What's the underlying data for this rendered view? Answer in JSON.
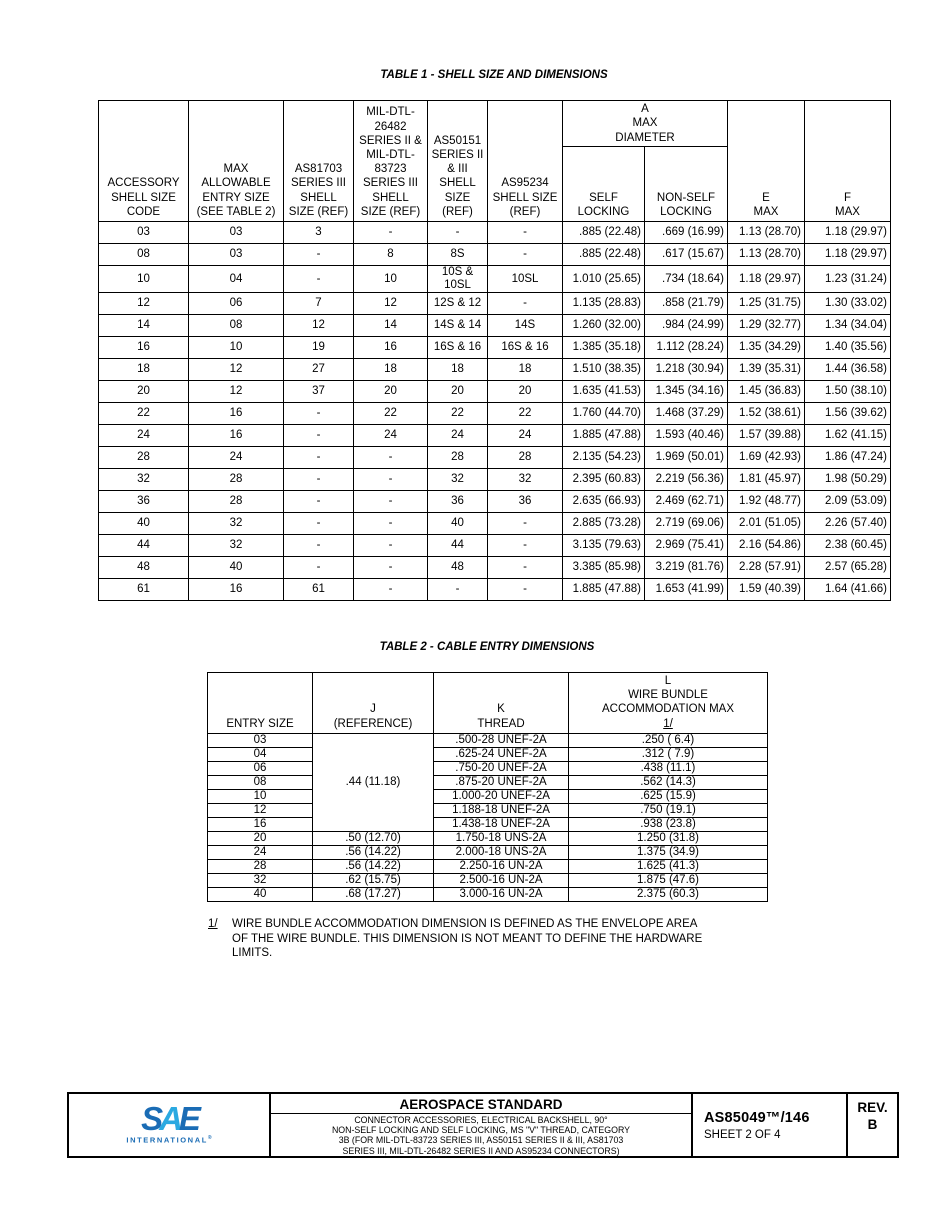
{
  "table1": {
    "title": "TABLE 1 - SHELL SIZE AND DIMENSIONS",
    "headers": {
      "accessory": "ACCESSORY\nSHELL SIZE\nCODE",
      "max_allowable": "MAX\nALLOWABLE\nENTRY SIZE\n(SEE TABLE 2)",
      "as81703": "AS81703\nSERIES III\nSHELL\nSIZE (REF)",
      "mil_dtl": "MIL-DTL-\n26482\nSERIES II &\nMIL-DTL-\n83723\nSERIES III\nSHELL\nSIZE (REF)",
      "as50151": "AS50151\nSERIES II\n& III\nSHELL\nSIZE\n(REF)",
      "as95234": "AS95234\nSHELL SIZE\n(REF)",
      "a_max": "A\nMAX\nDIAMETER",
      "self_locking": "SELF\nLOCKING",
      "non_self_locking": "NON-SELF\nLOCKING",
      "e_max": "E\nMAX",
      "f_max": "F\nMAX"
    },
    "rows": [
      [
        "03",
        "03",
        "3",
        "-",
        "-",
        "-",
        ".885 (22.48)",
        ".669 (16.99)",
        "1.13 (28.70)",
        "1.18 (29.97)"
      ],
      [
        "08",
        "03",
        "-",
        "8",
        "8S",
        "-",
        ".885 (22.48)",
        ".617 (15.67)",
        "1.13 (28.70)",
        "1.18 (29.97)"
      ],
      [
        "10",
        "04",
        "-",
        "10",
        "10S &\n10SL",
        "10SL",
        "1.010 (25.65)",
        ".734 (18.64)",
        "1.18 (29.97)",
        "1.23 (31.24)"
      ],
      [
        "12",
        "06",
        "7",
        "12",
        "12S & 12",
        "-",
        "1.135 (28.83)",
        ".858 (21.79)",
        "1.25 (31.75)",
        "1.30 (33.02)"
      ],
      [
        "14",
        "08",
        "12",
        "14",
        "14S & 14",
        "14S",
        "1.260 (32.00)",
        ".984 (24.99)",
        "1.29 (32.77)",
        "1.34 (34.04)"
      ],
      [
        "16",
        "10",
        "19",
        "16",
        "16S & 16",
        "16S & 16",
        "1.385 (35.18)",
        "1.112 (28.24)",
        "1.35 (34.29)",
        "1.40 (35.56)"
      ],
      [
        "18",
        "12",
        "27",
        "18",
        "18",
        "18",
        "1.510 (38.35)",
        "1.218 (30.94)",
        "1.39 (35.31)",
        "1.44 (36.58)"
      ],
      [
        "20",
        "12",
        "37",
        "20",
        "20",
        "20",
        "1.635 (41.53)",
        "1.345 (34.16)",
        "1.45 (36.83)",
        "1.50 (38.10)"
      ],
      [
        "22",
        "16",
        "-",
        "22",
        "22",
        "22",
        "1.760 (44.70)",
        "1.468 (37.29)",
        "1.52 (38.61)",
        "1.56 (39.62)"
      ],
      [
        "24",
        "16",
        "-",
        "24",
        "24",
        "24",
        "1.885 (47.88)",
        "1.593 (40.46)",
        "1.57 (39.88)",
        "1.62 (41.15)"
      ],
      [
        "28",
        "24",
        "-",
        "-",
        "28",
        "28",
        "2.135 (54.23)",
        "1.969 (50.01)",
        "1.69 (42.93)",
        "1.86 (47.24)"
      ],
      [
        "32",
        "28",
        "-",
        "-",
        "32",
        "32",
        "2.395 (60.83)",
        "2.219 (56.36)",
        "1.81 (45.97)",
        "1.98 (50.29)"
      ],
      [
        "36",
        "28",
        "-",
        "-",
        "36",
        "36",
        "2.635 (66.93)",
        "2.469 (62.71)",
        "1.92 (48.77)",
        "2.09 (53.09)"
      ],
      [
        "40",
        "32",
        "-",
        "-",
        "40",
        "-",
        "2.885 (73.28)",
        "2.719 (69.06)",
        "2.01 (51.05)",
        "2.26 (57.40)"
      ],
      [
        "44",
        "32",
        "-",
        "-",
        "44",
        "-",
        "3.135 (79.63)",
        "2.969 (75.41)",
        "2.16 (54.86)",
        "2.38 (60.45)"
      ],
      [
        "48",
        "40",
        "-",
        "-",
        "48",
        "-",
        "3.385 (85.98)",
        "3.219 (81.76)",
        "2.28 (57.91)",
        "2.57 (65.28)"
      ],
      [
        "61",
        "16",
        "61",
        "-",
        "-",
        "-",
        "1.885 (47.88)",
        "1.653 (41.99)",
        "1.59 (40.39)",
        "1.64 (41.66)"
      ]
    ]
  },
  "table2": {
    "title": "TABLE 2 - CABLE ENTRY DIMENSIONS",
    "headers": {
      "entry_size": "ENTRY SIZE",
      "j_ref": "J\n(REFERENCE)",
      "k_thread": "K\nTHREAD",
      "l_max": "L\nWIRE BUNDLE\nACCOMMODATION MAX",
      "l_marker": "1/"
    },
    "rows": [
      [
        "03",
        {
          "t": ".44 (11.18)",
          "rs": 7
        },
        ".500-28 UNEF-2A",
        ".250 ( 6.4)"
      ],
      [
        "04",
        ".625-24 UNEF-2A",
        ".312 ( 7.9)"
      ],
      [
        "06",
        ".750-20 UNEF-2A",
        ".438 (11.1)"
      ],
      [
        "08",
        ".875-20 UNEF-2A",
        ".562 (14.3)"
      ],
      [
        "10",
        "1.000-20 UNEF-2A",
        ".625 (15.9)"
      ],
      [
        "12",
        "1.188-18 UNEF-2A",
        ".750 (19.1)"
      ],
      [
        "16",
        "1.438-18 UNEF-2A",
        ".938 (23.8)"
      ],
      [
        "20",
        ".50 (12.70)",
        "1.750-18 UNS-2A",
        "1.250 (31.8)"
      ],
      [
        "24",
        ".56 (14.22)",
        "2.000-18 UNS-2A",
        "1.375 (34.9)"
      ],
      [
        "28",
        ".56 (14.22)",
        "2.250-16 UN-2A",
        "1.625 (41.3)"
      ],
      [
        "32",
        ".62 (15.75)",
        "2.500-16 UN-2A",
        "1.875 (47.6)"
      ],
      [
        "40",
        ".68 (17.27)",
        "3.000-16 UN-2A",
        "2.375 (60.3)"
      ]
    ]
  },
  "footnote": {
    "marker": "1/",
    "text": "WIRE BUNDLE ACCOMMODATION DIMENSION IS DEFINED AS THE ENVELOPE AREA\nOF THE WIRE BUNDLE. THIS DIMENSION IS NOT MEANT TO DEFINE THE HARDWARE\nLIMITS."
  },
  "footer": {
    "logo": {
      "s": "S",
      "a": "A",
      "e": "E",
      "intl": "INTERNATIONAL",
      "reg": "®",
      "dark_blue": "#1a6cb5",
      "light_blue": "#2aa9e1"
    },
    "title": "AEROSPACE STANDARD",
    "subtitle": "CONNECTOR ACCESSORIES, ELECTRICAL BACKSHELL, 90°\nNON-SELF LOCKING AND SELF LOCKING, MS \"V\" THREAD, CATEGORY\n3B (FOR MIL-DTL-83723 SERIES III, AS50151 SERIES II & III, AS81703\nSERIES III, MIL-DTL-26482 SERIES II AND AS95234 CONNECTORS)",
    "doc_number": "AS85049™/146",
    "sheet": "SHEET 2 OF 4",
    "rev_label": "REV.",
    "rev_value": "B"
  }
}
